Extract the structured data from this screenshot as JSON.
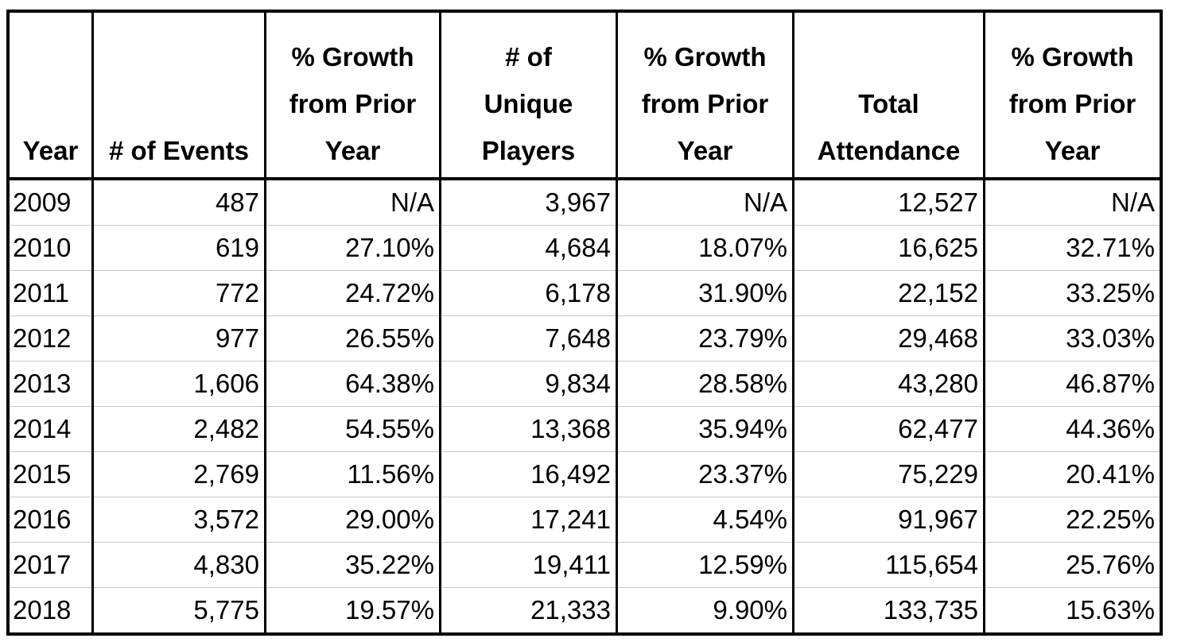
{
  "chart_data": {
    "type": "table",
    "columns": [
      "Year",
      "# of Events",
      "% Growth from Prior Year",
      "# of Unique Players",
      "% Growth from Prior Year",
      "Total Attendance",
      "% Growth from Prior Year"
    ],
    "header_lines": [
      [
        "Year"
      ],
      [
        "# of Events"
      ],
      [
        "% Growth",
        "from Prior",
        "Year"
      ],
      [
        "# of",
        "Unique",
        "Players"
      ],
      [
        "% Growth",
        "from Prior",
        "Year"
      ],
      [
        "Total",
        "Attendance"
      ],
      [
        "% Growth",
        "from Prior",
        "Year"
      ]
    ],
    "rows": [
      [
        "2009",
        "487",
        "N/A",
        "3,967",
        "N/A",
        "12,527",
        "N/A"
      ],
      [
        "2010",
        "619",
        "27.10%",
        "4,684",
        "18.07%",
        "16,625",
        "32.71%"
      ],
      [
        "2011",
        "772",
        "24.72%",
        "6,178",
        "31.90%",
        "22,152",
        "33.25%"
      ],
      [
        "2012",
        "977",
        "26.55%",
        "7,648",
        "23.79%",
        "29,468",
        "33.03%"
      ],
      [
        "2013",
        "1,606",
        "64.38%",
        "9,834",
        "28.58%",
        "43,280",
        "46.87%"
      ],
      [
        "2014",
        "2,482",
        "54.55%",
        "13,368",
        "35.94%",
        "62,477",
        "44.36%"
      ],
      [
        "2015",
        "2,769",
        "11.56%",
        "16,492",
        "23.37%",
        "75,229",
        "20.41%"
      ],
      [
        "2016",
        "3,572",
        "29.00%",
        "17,241",
        "4.54%",
        "91,967",
        "22.25%"
      ],
      [
        "2017",
        "4,830",
        "35.22%",
        "19,411",
        "12.59%",
        "115,654",
        "25.76%"
      ],
      [
        "2018",
        "5,775",
        "19.57%",
        "21,333",
        "9.90%",
        "133,735",
        "15.63%"
      ]
    ]
  }
}
